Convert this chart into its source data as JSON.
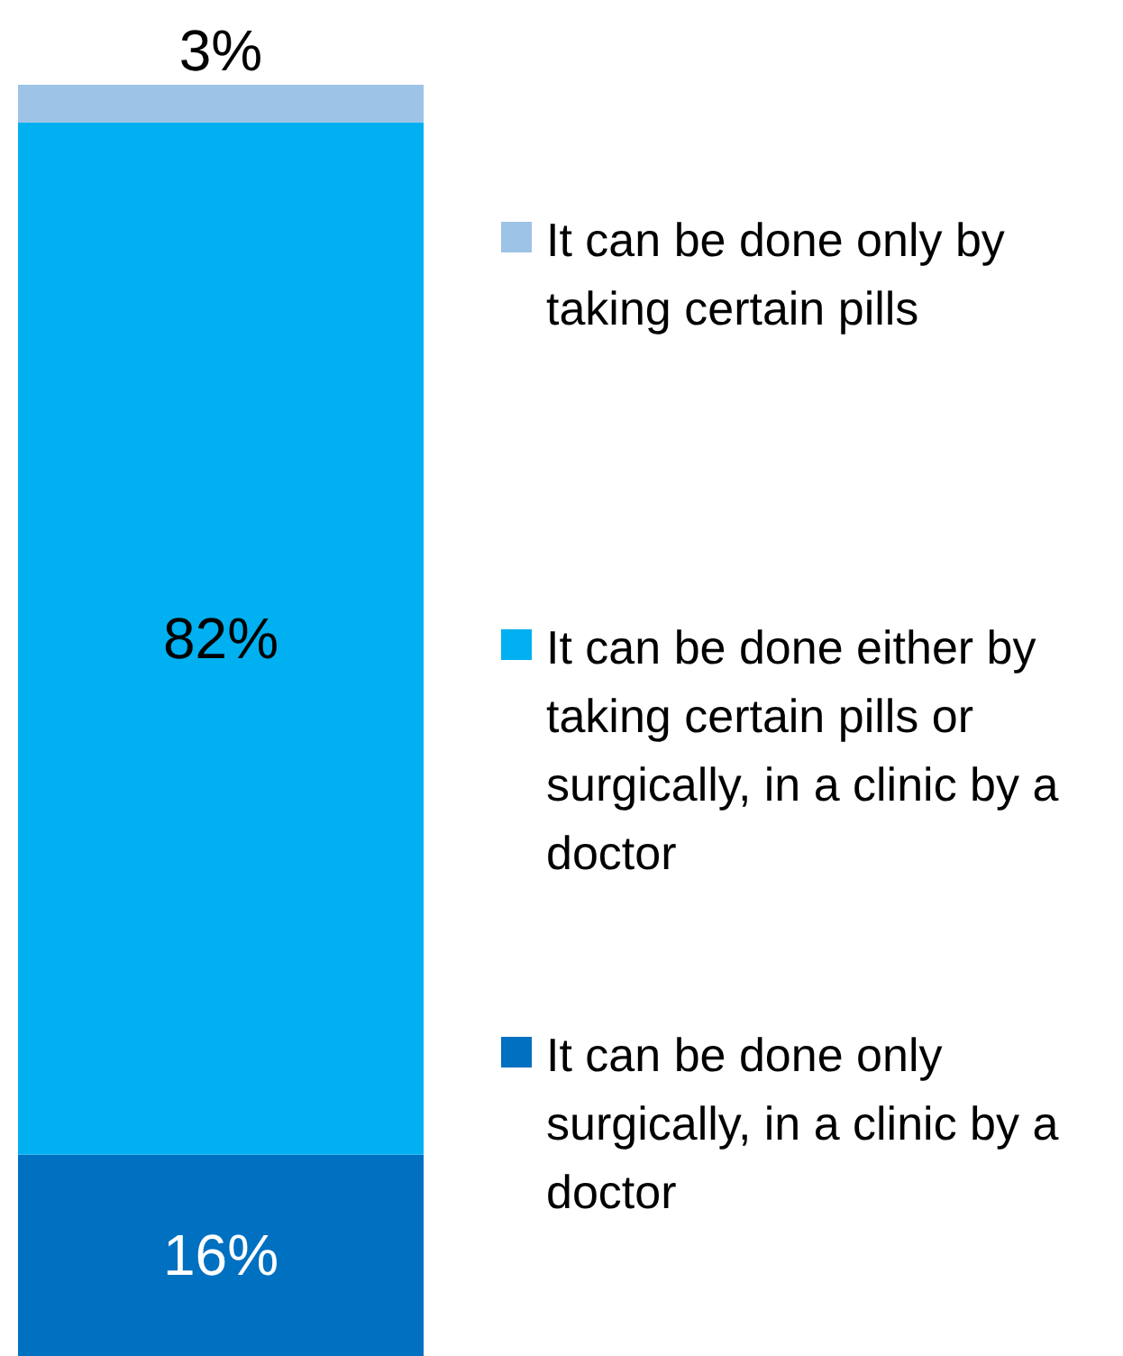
{
  "chart_data": {
    "type": "bar",
    "stacked": true,
    "categories": [
      null
    ],
    "legend": "right",
    "series": [
      {
        "name": "It can be done only surgically, in a clinic by a doctor",
        "color": "#0070c0",
        "values": [
          16
        ],
        "value_labels": [
          "16%"
        ]
      },
      {
        "name": "It can be done either by taking certain pills or surgically, in a clinic by a doctor",
        "color": "#00b0f0",
        "values": [
          82
        ],
        "value_labels": [
          "82%"
        ]
      },
      {
        "name": "It can be done only by taking certain pills",
        "color": "#9dc3e6",
        "values": [
          3
        ],
        "value_labels": [
          "3%"
        ]
      }
    ]
  }
}
